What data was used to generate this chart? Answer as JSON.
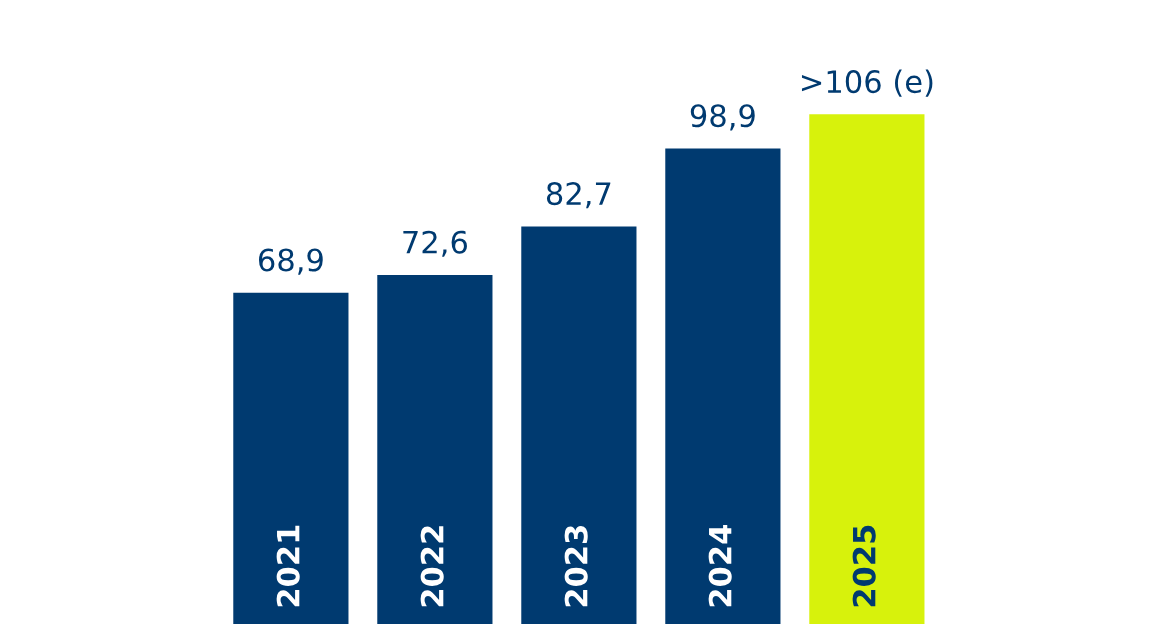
{
  "chart_data": {
    "type": "bar",
    "categories": [
      "2021",
      "2022",
      "2023",
      "2024",
      "2025"
    ],
    "values": [
      68.9,
      72.6,
      82.7,
      98.9,
      106
    ],
    "value_labels": [
      "68,9",
      "72,6",
      "82,7",
      "98,9",
      ">106 (e)"
    ],
    "colors": [
      "#003a70",
      "#003a70",
      "#003a70",
      "#003a70",
      "#d7f20c"
    ]
  }
}
